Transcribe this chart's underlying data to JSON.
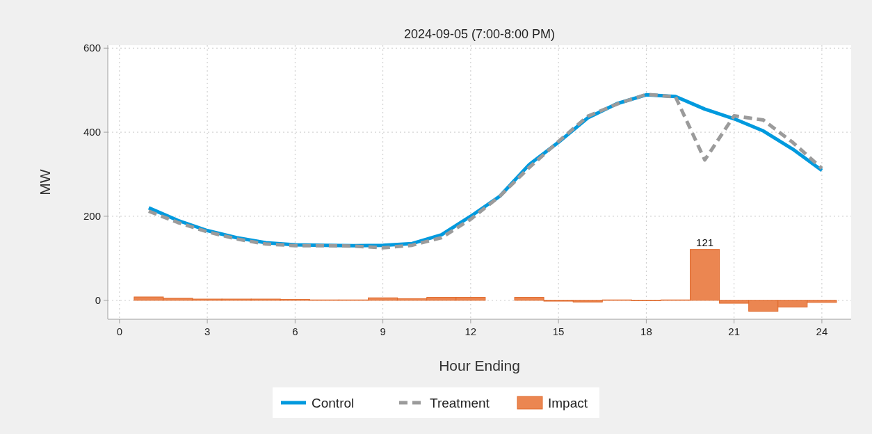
{
  "chart_data": {
    "type": "line",
    "title": "2024-09-05 (7:00-8:00 PM)",
    "xlabel": "Hour Ending",
    "ylabel": "MW",
    "x": [
      1,
      2,
      3,
      4,
      5,
      6,
      7,
      8,
      9,
      10,
      11,
      12,
      13,
      14,
      15,
      16,
      17,
      18,
      19,
      20,
      21,
      22,
      23,
      24
    ],
    "series": [
      {
        "name": "Control",
        "color": "#009ade",
        "line_style": "solid",
        "values": [
          220,
          190,
          166,
          149,
          137,
          132,
          131,
          130,
          131,
          135,
          156,
          200,
          248,
          323,
          376,
          434,
          468,
          489,
          485,
          455,
          432,
          403,
          360,
          309
        ]
      },
      {
        "name": "Treatment",
        "color": "#9b9b9b",
        "line_style": "dashed",
        "values": [
          212,
          185,
          163,
          146,
          134,
          130,
          130,
          129,
          125,
          131,
          149,
          193,
          248,
          316,
          378,
          438,
          467,
          490,
          484,
          334,
          439,
          429,
          376,
          314
        ]
      },
      {
        "name": "Impact",
        "type": "bar",
        "color": "#eb8651",
        "values": [
          8,
          5,
          3,
          3,
          3,
          2,
          1,
          1,
          6,
          4,
          7,
          7,
          0,
          7,
          -2,
          -4,
          1,
          -1,
          1,
          121,
          -7,
          -26,
          -16,
          -5
        ],
        "value_labels": [
          null,
          null,
          null,
          null,
          null,
          null,
          null,
          null,
          null,
          null,
          null,
          null,
          null,
          null,
          null,
          null,
          null,
          null,
          null,
          "121",
          null,
          null,
          null,
          null
        ]
      }
    ],
    "xlim": [
      -0.4,
      25
    ],
    "xticks": [
      0,
      3,
      6,
      9,
      12,
      15,
      18,
      21,
      24
    ],
    "ylim": [
      -45,
      607
    ],
    "yticks": [
      0,
      200,
      400,
      600
    ],
    "grid": true,
    "legend": "bottom"
  }
}
